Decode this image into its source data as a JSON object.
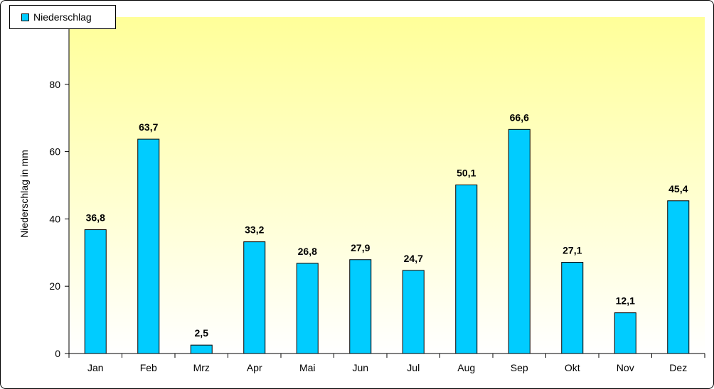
{
  "chart_data": {
    "type": "bar",
    "categories": [
      "Jan",
      "Feb",
      "Mrz",
      "Apr",
      "Mai",
      "Jun",
      "Jul",
      "Aug",
      "Sep",
      "Okt",
      "Nov",
      "Dez"
    ],
    "series": [
      {
        "name": "Niederschlag",
        "values": [
          36.8,
          63.7,
          2.5,
          33.2,
          26.8,
          27.9,
          24.7,
          50.1,
          66.6,
          27.1,
          12.1,
          45.4
        ],
        "labels": [
          "36,8",
          "63,7",
          "2,5",
          "33,2",
          "26,8",
          "27,9",
          "24,7",
          "50,1",
          "66,6",
          "27,1",
          "12,1",
          "45,4"
        ]
      }
    ],
    "ylabel": "Niederschlag in mm",
    "xlabel": "",
    "ylim": [
      0,
      100
    ],
    "yticks": [
      0,
      20,
      40,
      60,
      80
    ],
    "legend": "top-left",
    "grid": false,
    "colors": {
      "bar": "#00ccff",
      "bar_border": "#000000",
      "plot_bg_top": "#ffff99",
      "plot_bg_bottom": "#ffffff"
    }
  }
}
